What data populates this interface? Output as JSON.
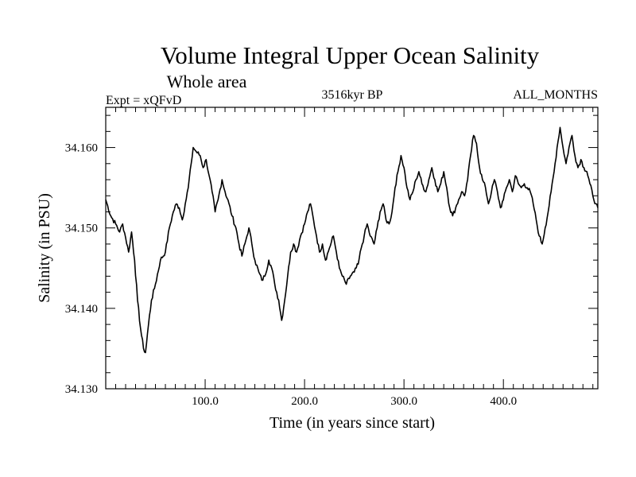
{
  "chart_data": {
    "type": "line",
    "title": "Volume Integral Upper Ocean Salinity",
    "subtitle": "Whole area",
    "left_label": "Expt = xQFvD",
    "center_label": "3516kyr BP",
    "right_label": "ALL_MONTHS",
    "xlabel": "Time (in years since start)",
    "ylabel": "Salinity (in PSU)",
    "xlim": [
      0,
      495
    ],
    "ylim": [
      34.13,
      34.165
    ],
    "x_ticks": [
      100,
      200,
      300,
      400
    ],
    "x_tick_labels": [
      "100.0",
      "200.0",
      "300.0",
      "400.0"
    ],
    "y_ticks": [
      34.13,
      34.14,
      34.15,
      34.16
    ],
    "y_tick_labels": [
      "34.130",
      "34.140",
      "34.150",
      "34.160"
    ],
    "grid": false,
    "series": [
      {
        "name": "salinity",
        "points": [
          [
            0,
            34.1535
          ],
          [
            5,
            34.1515
          ],
          [
            10,
            34.1505
          ],
          [
            14,
            34.1495
          ],
          [
            17,
            34.1505
          ],
          [
            20,
            34.1488
          ],
          [
            23,
            34.147
          ],
          [
            26,
            34.1495
          ],
          [
            29,
            34.146
          ],
          [
            32,
            34.141
          ],
          [
            35,
            34.1375
          ],
          [
            38,
            34.135
          ],
          [
            40,
            34.1345
          ],
          [
            43,
            34.138
          ],
          [
            46,
            34.141
          ],
          [
            50,
            34.143
          ],
          [
            55,
            34.146
          ],
          [
            60,
            34.147
          ],
          [
            64,
            34.15
          ],
          [
            68,
            34.152
          ],
          [
            71,
            34.153
          ],
          [
            74,
            34.1525
          ],
          [
            77,
            34.151
          ],
          [
            80,
            34.153
          ],
          [
            83,
            34.155
          ],
          [
            86,
            34.158
          ],
          [
            88,
            34.16
          ],
          [
            91,
            34.1595
          ],
          [
            95,
            34.159
          ],
          [
            98,
            34.1575
          ],
          [
            101,
            34.1585
          ],
          [
            104,
            34.1565
          ],
          [
            107,
            34.1545
          ],
          [
            110,
            34.152
          ],
          [
            113,
            34.1535
          ],
          [
            117,
            34.156
          ],
          [
            120,
            34.1545
          ],
          [
            124,
            34.153
          ],
          [
            127,
            34.1515
          ],
          [
            131,
            34.15
          ],
          [
            134,
            34.148
          ],
          [
            137,
            34.1465
          ],
          [
            141,
            34.1485
          ],
          [
            144,
            34.15
          ],
          [
            147,
            34.148
          ],
          [
            150,
            34.146
          ],
          [
            154,
            34.1445
          ],
          [
            157,
            34.1435
          ],
          [
            160,
            34.144
          ],
          [
            164,
            34.146
          ],
          [
            167,
            34.145
          ],
          [
            170,
            34.143
          ],
          [
            174,
            34.141
          ],
          [
            177,
            34.1385
          ],
          [
            180,
            34.141
          ],
          [
            183,
            34.144
          ],
          [
            186,
            34.147
          ],
          [
            189,
            34.148
          ],
          [
            192,
            34.147
          ],
          [
            196,
            34.149
          ],
          [
            200,
            34.1505
          ],
          [
            203,
            34.152
          ],
          [
            206,
            34.153
          ],
          [
            209,
            34.151
          ],
          [
            212,
            34.149
          ],
          [
            215,
            34.147
          ],
          [
            218,
            34.148
          ],
          [
            221,
            34.146
          ],
          [
            225,
            34.1475
          ],
          [
            229,
            34.149
          ],
          [
            232,
            34.147
          ],
          [
            235,
            34.145
          ],
          [
            238,
            34.144
          ],
          [
            242,
            34.143
          ],
          [
            246,
            34.144
          ],
          [
            250,
            34.1445
          ],
          [
            254,
            34.1455
          ],
          [
            257,
            34.1475
          ],
          [
            260,
            34.149
          ],
          [
            263,
            34.1505
          ],
          [
            266,
            34.149
          ],
          [
            270,
            34.148
          ],
          [
            273,
            34.15
          ],
          [
            276,
            34.152
          ],
          [
            279,
            34.153
          ],
          [
            282,
            34.151
          ],
          [
            285,
            34.1505
          ],
          [
            288,
            34.152
          ],
          [
            291,
            34.155
          ],
          [
            294,
            34.157
          ],
          [
            297,
            34.159
          ],
          [
            300,
            34.1575
          ],
          [
            303,
            34.155
          ],
          [
            306,
            34.1535
          ],
          [
            309,
            34.1545
          ],
          [
            312,
            34.156
          ],
          [
            315,
            34.157
          ],
          [
            318,
            34.1555
          ],
          [
            322,
            34.1545
          ],
          [
            325,
            34.156
          ],
          [
            328,
            34.1575
          ],
          [
            331,
            34.156
          ],
          [
            334,
            34.1545
          ],
          [
            337,
            34.1555
          ],
          [
            340,
            34.157
          ],
          [
            343,
            34.155
          ],
          [
            346,
            34.1525
          ],
          [
            349,
            34.1515
          ],
          [
            352,
            34.1525
          ],
          [
            355,
            34.1535
          ],
          [
            358,
            34.1545
          ],
          [
            361,
            34.154
          ],
          [
            364,
            34.156
          ],
          [
            367,
            34.159
          ],
          [
            370,
            34.1615
          ],
          [
            373,
            34.1605
          ],
          [
            376,
            34.1575
          ],
          [
            379,
            34.156
          ],
          [
            382,
            34.155
          ],
          [
            385,
            34.153
          ],
          [
            388,
            34.1545
          ],
          [
            391,
            34.156
          ],
          [
            394,
            34.1545
          ],
          [
            397,
            34.1525
          ],
          [
            400,
            34.1535
          ],
          [
            403,
            34.155
          ],
          [
            406,
            34.156
          ],
          [
            409,
            34.1545
          ],
          [
            412,
            34.1565
          ],
          [
            415,
            34.1555
          ],
          [
            418,
            34.155
          ],
          [
            421,
            34.1555
          ],
          [
            424,
            34.155
          ],
          [
            427,
            34.1545
          ],
          [
            430,
            34.153
          ],
          [
            433,
            34.151
          ],
          [
            436,
            34.149
          ],
          [
            439,
            34.148
          ],
          [
            442,
            34.15
          ],
          [
            445,
            34.152
          ],
          [
            448,
            34.1545
          ],
          [
            451,
            34.157
          ],
          [
            454,
            34.16
          ],
          [
            457,
            34.1625
          ],
          [
            460,
            34.16
          ],
          [
            463,
            34.158
          ],
          [
            466,
            34.16
          ],
          [
            469,
            34.1615
          ],
          [
            472,
            34.159
          ],
          [
            475,
            34.1575
          ],
          [
            478,
            34.1585
          ],
          [
            481,
            34.1575
          ],
          [
            484,
            34.157
          ],
          [
            487,
            34.1555
          ],
          [
            490,
            34.154
          ],
          [
            493,
            34.153
          ],
          [
            495,
            34.1525
          ]
        ]
      }
    ]
  }
}
